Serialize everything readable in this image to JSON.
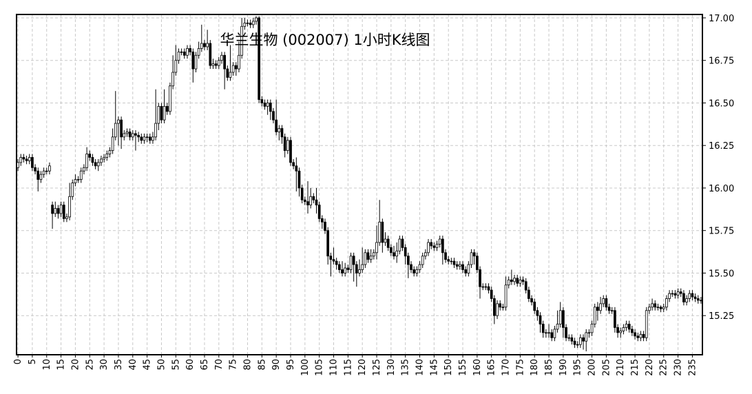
{
  "chart_data": {
    "type": "candlestick",
    "title": "华兰生物 (002007) 1小时K线图",
    "up_color": "#ffffff",
    "down_color": "#000000",
    "edge_color": "#000000",
    "grid": true,
    "xlim": [
      -0.5,
      238.5
    ],
    "ylim": [
      15.02,
      17.02
    ],
    "xticks": [
      0,
      5,
      10,
      15,
      20,
      25,
      30,
      35,
      40,
      45,
      50,
      55,
      60,
      65,
      70,
      75,
      80,
      85,
      90,
      95,
      100,
      105,
      110,
      115,
      120,
      125,
      130,
      135,
      140,
      145,
      150,
      155,
      160,
      165,
      170,
      175,
      180,
      185,
      190,
      195,
      200,
      205,
      210,
      215,
      220,
      225,
      230,
      235
    ],
    "yticks": [
      {
        "value": 15.25,
        "label": "15.25"
      },
      {
        "value": 15.5,
        "label": "15.50"
      },
      {
        "value": 15.75,
        "label": "15.75"
      },
      {
        "value": 16,
        "label": "16.00"
      },
      {
        "value": 16.25,
        "label": "16.25"
      },
      {
        "value": 16.5,
        "label": "16.50"
      },
      {
        "value": 16.75,
        "label": "16.75"
      },
      {
        "value": 17,
        "label": "17.00"
      }
    ],
    "open": [
      16.12,
      16.15,
      16.18,
      16.17,
      16.16,
      16.18,
      16.12,
      16.1,
      16.05,
      16.08,
      16.1,
      16.1,
      15.9,
      15.85,
      15.88,
      15.85,
      15.9,
      15.82,
      15.83,
      15.95,
      16.03,
      16.05,
      16.05,
      16.1,
      16.12,
      16.2,
      16.18,
      16.15,
      16.13,
      16.15,
      16.17,
      16.18,
      16.2,
      16.22,
      16.3,
      16.38,
      16.4,
      16.3,
      16.32,
      16.33,
      16.3,
      16.32,
      16.31,
      16.3,
      16.28,
      16.3,
      16.3,
      16.28,
      16.3,
      16.38,
      16.48,
      16.4,
      16.48,
      16.45,
      16.6,
      16.68,
      16.75,
      16.8,
      16.8,
      16.78,
      16.82,
      16.8,
      16.7,
      16.78,
      16.82,
      16.85,
      16.83,
      16.85,
      16.72,
      16.73,
      16.72,
      16.75,
      16.78,
      16.7,
      16.65,
      16.68,
      16.72,
      16.7,
      16.78,
      16.95,
      16.97,
      16.97,
      16.96,
      16.98,
      17.0,
      16.52,
      16.5,
      16.48,
      16.5,
      16.45,
      16.4,
      16.33,
      16.35,
      16.3,
      16.22,
      16.28,
      16.15,
      16.13,
      16.1,
      16.0,
      15.93,
      15.92,
      15.9,
      15.95,
      15.93,
      15.9,
      15.82,
      15.8,
      15.75,
      15.6,
      15.58,
      15.57,
      15.55,
      15.52,
      15.5,
      15.53,
      15.52,
      15.6,
      15.55,
      15.5,
      15.52,
      15.55,
      15.62,
      15.58,
      15.6,
      15.62,
      15.68,
      15.8,
      15.68,
      15.7,
      15.65,
      15.62,
      15.6,
      15.63,
      15.7,
      15.65,
      15.6,
      15.55,
      15.52,
      15.5,
      15.52,
      15.55,
      15.6,
      15.62,
      15.68,
      15.66,
      15.65,
      15.67,
      15.7,
      15.62,
      15.58,
      15.57,
      15.57,
      15.55,
      15.54,
      15.55,
      15.52,
      15.5,
      15.55,
      15.62,
      15.6,
      15.52,
      15.42,
      15.42,
      15.42,
      15.4,
      15.35,
      15.25,
      15.32,
      15.3,
      15.3,
      15.43,
      15.46,
      15.45,
      15.47,
      15.44,
      15.46,
      15.45,
      15.4,
      15.35,
      15.33,
      15.28,
      15.25,
      15.2,
      15.15,
      15.15,
      15.15,
      15.12,
      15.17,
      15.2,
      15.28,
      15.18,
      15.12,
      15.12,
      15.1,
      15.08,
      15.08,
      15.12,
      15.1,
      15.15,
      15.15,
      15.2,
      15.3,
      15.28,
      15.32,
      15.35,
      15.3,
      15.28,
      15.28,
      15.18,
      15.15,
      15.16,
      15.18,
      15.2,
      15.17,
      15.15,
      15.13,
      15.12,
      15.14,
      15.12,
      15.28,
      15.3,
      15.32,
      15.3,
      15.3,
      15.29,
      15.3,
      15.35,
      15.38,
      15.38,
      15.37,
      15.39,
      15.38,
      15.33,
      15.35,
      15.38,
      15.36,
      15.35,
      15.34
    ],
    "high": [
      16.17,
      16.2,
      16.2,
      16.19,
      16.2,
      16.2,
      16.14,
      16.12,
      16.1,
      16.12,
      16.12,
      16.15,
      15.92,
      15.92,
      15.9,
      15.92,
      15.92,
      15.85,
      16.03,
      16.05,
      16.08,
      16.07,
      16.12,
      16.14,
      16.24,
      16.22,
      16.2,
      16.17,
      16.17,
      16.19,
      16.2,
      16.22,
      16.24,
      16.35,
      16.57,
      16.42,
      16.42,
      16.34,
      16.35,
      16.35,
      16.34,
      16.34,
      16.33,
      16.32,
      16.32,
      16.32,
      16.32,
      16.33,
      16.58,
      16.5,
      16.5,
      16.58,
      16.5,
      16.62,
      16.78,
      16.84,
      16.82,
      16.82,
      16.82,
      16.84,
      16.84,
      16.82,
      16.8,
      16.86,
      16.96,
      16.87,
      16.93,
      16.87,
      16.76,
      16.75,
      16.77,
      16.8,
      16.8,
      16.72,
      16.84,
      16.74,
      16.74,
      16.86,
      17.0,
      17.0,
      16.99,
      16.99,
      17.0,
      17.01,
      17.01,
      16.54,
      16.52,
      16.52,
      16.52,
      16.47,
      16.52,
      16.37,
      16.37,
      16.32,
      16.3,
      16.3,
      16.17,
      16.18,
      16.12,
      16.02,
      15.95,
      16.04,
      16.0,
      15.97,
      16.0,
      15.92,
      15.84,
      15.82,
      15.77,
      15.62,
      15.65,
      15.59,
      15.57,
      15.57,
      15.56,
      15.55,
      15.62,
      15.62,
      15.57,
      15.58,
      15.65,
      15.64,
      15.64,
      15.64,
      15.64,
      15.78,
      15.93,
      15.82,
      15.74,
      15.72,
      15.67,
      15.66,
      15.68,
      15.72,
      15.72,
      15.67,
      15.62,
      15.57,
      15.54,
      15.54,
      15.57,
      15.62,
      15.64,
      15.7,
      15.7,
      15.68,
      15.69,
      15.72,
      15.72,
      15.64,
      15.6,
      15.59,
      15.59,
      15.57,
      15.57,
      15.57,
      15.54,
      15.57,
      15.64,
      15.64,
      15.62,
      15.54,
      15.44,
      15.44,
      15.44,
      15.42,
      15.37,
      15.34,
      15.34,
      15.32,
      15.48,
      15.48,
      15.52,
      15.49,
      15.49,
      15.48,
      15.48,
      15.47,
      15.42,
      15.37,
      15.35,
      15.3,
      15.27,
      15.22,
      15.17,
      15.2,
      15.17,
      15.19,
      15.28,
      15.33,
      15.3,
      15.2,
      15.14,
      15.14,
      15.12,
      15.1,
      15.14,
      15.14,
      15.17,
      15.17,
      15.22,
      15.32,
      15.33,
      15.36,
      15.37,
      15.37,
      15.32,
      15.3,
      15.3,
      15.2,
      15.18,
      15.2,
      15.22,
      15.22,
      15.19,
      15.17,
      15.15,
      15.16,
      15.16,
      15.3,
      15.32,
      15.35,
      15.34,
      15.32,
      15.31,
      15.32,
      15.37,
      15.4,
      15.4,
      15.4,
      15.41,
      15.41,
      15.4,
      15.37,
      15.4,
      15.4,
      15.38,
      15.37,
      15.36
    ],
    "low": [
      16.1,
      16.13,
      16.15,
      16.14,
      16.14,
      16.1,
      16.08,
      15.98,
      16.03,
      16.06,
      16.08,
      16.08,
      15.76,
      15.83,
      15.82,
      15.83,
      15.8,
      15.8,
      15.81,
      15.93,
      16.01,
      16.03,
      16.03,
      16.08,
      16.1,
      16.16,
      16.13,
      16.11,
      16.1,
      16.13,
      16.15,
      16.16,
      16.18,
      16.2,
      16.28,
      16.25,
      16.23,
      16.28,
      16.3,
      16.28,
      16.28,
      16.22,
      16.27,
      16.26,
      16.26,
      16.27,
      16.26,
      16.26,
      16.28,
      16.34,
      16.38,
      16.38,
      16.43,
      16.43,
      16.58,
      16.66,
      16.73,
      16.78,
      16.76,
      16.76,
      16.78,
      16.62,
      16.68,
      16.76,
      16.8,
      16.81,
      16.81,
      16.7,
      16.7,
      16.7,
      16.7,
      16.73,
      16.58,
      16.63,
      16.63,
      16.66,
      16.66,
      16.68,
      16.76,
      16.93,
      16.95,
      16.94,
      16.94,
      16.96,
      16.5,
      16.48,
      16.46,
      16.43,
      16.4,
      16.38,
      16.31,
      16.28,
      16.26,
      16.18,
      16.2,
      16.13,
      16.11,
      15.98,
      15.95,
      15.91,
      15.9,
      15.85,
      15.88,
      15.91,
      15.85,
      15.8,
      15.76,
      15.73,
      15.55,
      15.48,
      15.55,
      15.52,
      15.5,
      15.48,
      15.48,
      15.5,
      15.5,
      15.45,
      15.42,
      15.48,
      15.5,
      15.53,
      15.56,
      15.56,
      15.58,
      15.58,
      15.66,
      15.62,
      15.66,
      15.63,
      15.6,
      15.58,
      15.56,
      15.61,
      15.63,
      15.55,
      15.47,
      15.5,
      15.48,
      15.48,
      15.5,
      15.53,
      15.58,
      15.6,
      15.64,
      15.63,
      15.63,
      15.65,
      15.55,
      15.56,
      15.55,
      15.55,
      15.53,
      15.52,
      15.52,
      15.5,
      15.48,
      15.48,
      15.53,
      15.55,
      15.5,
      15.35,
      15.4,
      15.4,
      15.38,
      15.33,
      15.2,
      15.23,
      15.28,
      15.28,
      15.28,
      15.41,
      15.43,
      15.43,
      15.42,
      15.42,
      15.43,
      15.38,
      15.33,
      15.31,
      15.26,
      15.22,
      15.15,
      15.12,
      15.12,
      15.12,
      15.1,
      15.1,
      15.15,
      15.18,
      15.12,
      15.1,
      15.1,
      15.08,
      15.06,
      15.06,
      15.06,
      15.05,
      15.04,
      15.12,
      15.13,
      15.18,
      15.22,
      15.26,
      15.3,
      15.28,
      15.26,
      15.26,
      15.15,
      15.12,
      15.12,
      15.14,
      15.16,
      15.15,
      15.13,
      15.11,
      15.1,
      15.1,
      15.1,
      15.1,
      15.26,
      15.28,
      15.28,
      15.28,
      15.27,
      15.27,
      15.28,
      15.33,
      15.36,
      15.35,
      15.35,
      15.36,
      15.31,
      15.31,
      15.33,
      15.34,
      15.33,
      15.32,
      15.32
    ],
    "close": [
      16.15,
      16.18,
      16.17,
      16.16,
      16.18,
      16.12,
      16.1,
      16.05,
      16.08,
      16.1,
      16.1,
      16.13,
      15.85,
      15.88,
      15.85,
      15.9,
      15.82,
      15.83,
      15.95,
      16.03,
      16.05,
      16.05,
      16.1,
      16.12,
      16.2,
      16.18,
      16.15,
      16.13,
      16.15,
      16.17,
      16.18,
      16.2,
      16.22,
      16.3,
      16.38,
      16.4,
      16.3,
      16.32,
      16.33,
      16.3,
      16.32,
      16.31,
      16.3,
      16.28,
      16.3,
      16.3,
      16.28,
      16.3,
      16.38,
      16.48,
      16.4,
      16.48,
      16.45,
      16.6,
      16.68,
      16.75,
      16.8,
      16.8,
      16.78,
      16.82,
      16.8,
      16.7,
      16.78,
      16.82,
      16.85,
      16.83,
      16.85,
      16.72,
      16.73,
      16.72,
      16.75,
      16.78,
      16.7,
      16.65,
      16.68,
      16.72,
      16.7,
      16.78,
      16.95,
      16.97,
      16.97,
      16.96,
      16.98,
      17.0,
      16.52,
      16.5,
      16.48,
      16.5,
      16.45,
      16.4,
      16.33,
      16.35,
      16.3,
      16.22,
      16.28,
      16.15,
      16.13,
      16.1,
      16.0,
      15.93,
      15.92,
      15.9,
      15.95,
      15.93,
      15.9,
      15.82,
      15.8,
      15.75,
      15.6,
      15.58,
      15.57,
      15.55,
      15.52,
      15.5,
      15.53,
      15.52,
      15.6,
      15.55,
      15.5,
      15.52,
      15.55,
      15.62,
      15.58,
      15.6,
      15.62,
      15.68,
      15.8,
      15.68,
      15.7,
      15.65,
      15.62,
      15.6,
      15.63,
      15.7,
      15.65,
      15.6,
      15.55,
      15.52,
      15.5,
      15.52,
      15.55,
      15.6,
      15.62,
      15.68,
      15.66,
      15.65,
      15.67,
      15.7,
      15.62,
      15.58,
      15.57,
      15.57,
      15.55,
      15.54,
      15.55,
      15.52,
      15.5,
      15.55,
      15.62,
      15.6,
      15.52,
      15.42,
      15.42,
      15.42,
      15.4,
      15.35,
      15.25,
      15.32,
      15.3,
      15.3,
      15.43,
      15.46,
      15.45,
      15.47,
      15.44,
      15.46,
      15.45,
      15.4,
      15.35,
      15.33,
      15.28,
      15.25,
      15.2,
      15.15,
      15.15,
      15.15,
      15.12,
      15.17,
      15.2,
      15.28,
      15.18,
      15.12,
      15.12,
      15.1,
      15.08,
      15.08,
      15.12,
      15.1,
      15.15,
      15.15,
      15.2,
      15.3,
      15.28,
      15.32,
      15.35,
      15.3,
      15.28,
      15.28,
      15.18,
      15.15,
      15.16,
      15.18,
      15.2,
      15.17,
      15.15,
      15.13,
      15.12,
      15.14,
      15.12,
      15.28,
      15.3,
      15.32,
      15.3,
      15.3,
      15.29,
      15.3,
      15.35,
      15.38,
      15.38,
      15.37,
      15.39,
      15.38,
      15.33,
      15.35,
      15.38,
      15.36,
      15.35,
      15.34,
      15.34
    ]
  }
}
